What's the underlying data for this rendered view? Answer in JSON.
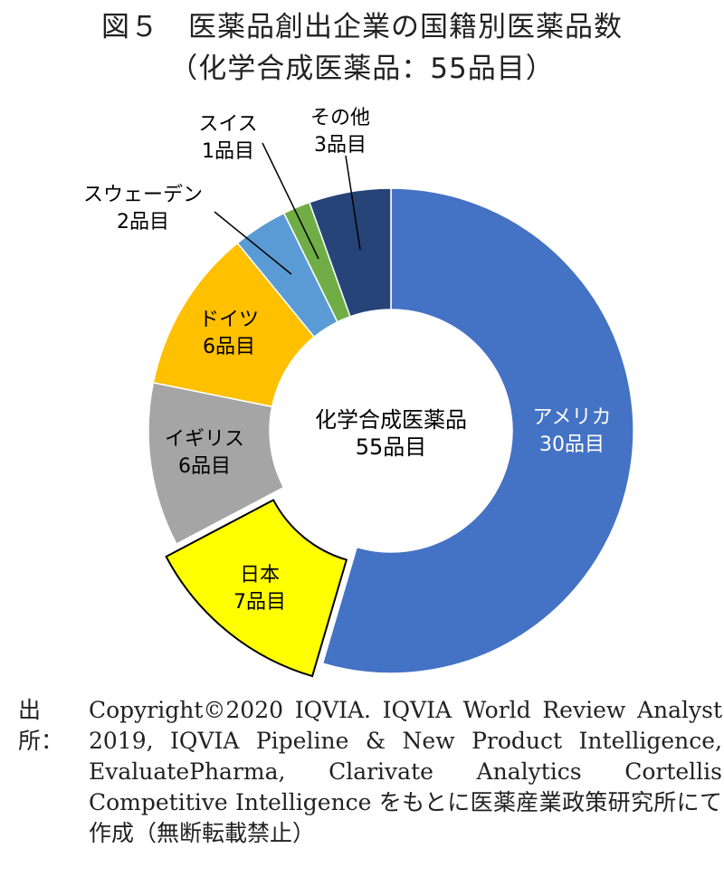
{
  "chart_data": {
    "type": "pie",
    "title": "図５　医薬品創出企業の国籍別医薬品数",
    "subtitle": "（化学合成医薬品：55品目）",
    "center_label": [
      "化学合成医薬品",
      "55品目"
    ],
    "donut": true,
    "unit": "品目",
    "slices": [
      {
        "name": "アメリカ",
        "value": 30,
        "label": "30品目",
        "color": "#4472C4"
      },
      {
        "name": "日本",
        "value": 7,
        "label": "7品目",
        "color": "#FFFF00",
        "highlighted": true
      },
      {
        "name": "イギリス",
        "value": 6,
        "label": "6品目",
        "color": "#A5A5A5"
      },
      {
        "name": "ドイツ",
        "value": 6,
        "label": "6品目",
        "color": "#FFC000"
      },
      {
        "name": "スウェーデン",
        "value": 2,
        "label": "2品目",
        "color": "#5B9BD5"
      },
      {
        "name": "スイス",
        "value": 1,
        "label": "1品目",
        "color": "#70AD47"
      },
      {
        "name": "その他",
        "value": 3,
        "label": "3品目",
        "color": "#264478"
      }
    ]
  },
  "source": {
    "label": "出所：",
    "text": "Copyright©2020 IQVIA. IQVIA World Review Analyst 2019, IQVIA Pipeline & New Product Intelligence, EvaluatePharma, Clarivate Analytics Cortellis Competitive Intelligence をもとに医薬産業政策研究所にて作成（無断転載禁止）"
  }
}
